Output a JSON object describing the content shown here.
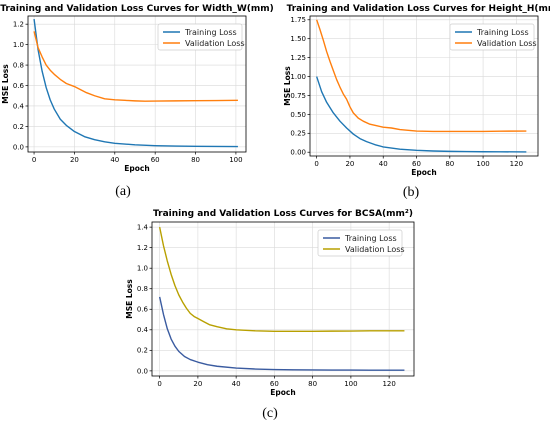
{
  "chart_data": [
    {
      "type": "line",
      "title": "Training and Validation Loss Curves for Width_W(mm)",
      "xlabel": "Epoch",
      "ylabel": "MSE Loss",
      "xlim": [
        -3,
        105
      ],
      "ylim": [
        -0.05,
        1.28
      ],
      "xticks": [
        0,
        20,
        40,
        60,
        80,
        100
      ],
      "yticks": [
        0.0,
        0.2,
        0.4,
        0.6,
        0.8,
        1.0,
        1.2
      ],
      "grid": true,
      "legend_position": "top-right",
      "caption": "(a)",
      "series": [
        {
          "name": "Training Loss",
          "color": "#1f77b4",
          "x": [
            0,
            2,
            4,
            6,
            8,
            10,
            13,
            16,
            20,
            25,
            30,
            35,
            40,
            50,
            60,
            70,
            80,
            90,
            101
          ],
          "values": [
            1.25,
            0.95,
            0.74,
            0.58,
            0.46,
            0.37,
            0.27,
            0.21,
            0.15,
            0.1,
            0.07,
            0.05,
            0.035,
            0.02,
            0.012,
            0.008,
            0.006,
            0.004,
            0.003
          ]
        },
        {
          "name": "Validation Loss",
          "color": "#ff7f0e",
          "x": [
            0,
            2,
            4,
            6,
            8,
            10,
            13,
            16,
            20,
            23,
            26,
            30,
            35,
            40,
            45,
            50,
            55,
            60,
            70,
            80,
            90,
            101
          ],
          "values": [
            1.13,
            0.97,
            0.88,
            0.8,
            0.75,
            0.71,
            0.66,
            0.62,
            0.59,
            0.56,
            0.53,
            0.5,
            0.47,
            0.46,
            0.455,
            0.45,
            0.447,
            0.448,
            0.45,
            0.452,
            0.453,
            0.455
          ]
        }
      ]
    },
    {
      "type": "line",
      "title": "Training and Validation Loss Curves for Height_H(mm)",
      "xlabel": "Epoch",
      "ylabel": "MSE Loss",
      "xlim": [
        -4,
        133
      ],
      "ylim": [
        -0.05,
        1.8
      ],
      "xticks": [
        0,
        20,
        40,
        60,
        80,
        100,
        120
      ],
      "yticks": [
        0.0,
        0.25,
        0.5,
        0.75,
        1.0,
        1.25,
        1.5,
        1.75
      ],
      "grid": true,
      "legend_position": "top-right",
      "caption": "(b)",
      "series": [
        {
          "name": "Training Loss",
          "color": "#1f77b4",
          "x": [
            0,
            3,
            6,
            10,
            14,
            18,
            22,
            26,
            30,
            35,
            40,
            50,
            60,
            70,
            80,
            90,
            100,
            110,
            126
          ],
          "values": [
            1.0,
            0.8,
            0.66,
            0.52,
            0.41,
            0.32,
            0.24,
            0.18,
            0.14,
            0.1,
            0.07,
            0.04,
            0.025,
            0.016,
            0.011,
            0.008,
            0.006,
            0.005,
            0.004
          ]
        },
        {
          "name": "Validation Loss",
          "color": "#ff7f0e",
          "x": [
            0,
            2,
            4,
            6,
            8,
            10,
            12,
            14,
            16,
            18,
            20,
            22,
            25,
            28,
            32,
            36,
            40,
            45,
            50,
            55,
            60,
            70,
            80,
            90,
            100,
            110,
            126
          ],
          "values": [
            1.75,
            1.62,
            1.48,
            1.33,
            1.2,
            1.08,
            0.96,
            0.86,
            0.77,
            0.7,
            0.6,
            0.52,
            0.45,
            0.41,
            0.37,
            0.35,
            0.33,
            0.32,
            0.3,
            0.29,
            0.28,
            0.275,
            0.275,
            0.275,
            0.275,
            0.278,
            0.28
          ]
        }
      ]
    },
    {
      "type": "line",
      "title": "Training and Validation Loss Curves for BCSA(mm²)",
      "xlabel": "Epoch",
      "ylabel": "MSE Loss",
      "xlim": [
        -4,
        133
      ],
      "ylim": [
        -0.05,
        1.45
      ],
      "xticks": [
        0,
        20,
        40,
        60,
        80,
        100,
        120
      ],
      "yticks": [
        0.0,
        0.2,
        0.4,
        0.6,
        0.8,
        1.0,
        1.2,
        1.4
      ],
      "grid": true,
      "legend_position": "top-right",
      "caption": "(c)",
      "series": [
        {
          "name": "Training Loss",
          "color": "#3a5ba0",
          "x": [
            0,
            2,
            4,
            6,
            8,
            10,
            13,
            16,
            20,
            25,
            30,
            40,
            50,
            60,
            70,
            80,
            90,
            100,
            110,
            128
          ],
          "values": [
            0.72,
            0.55,
            0.41,
            0.31,
            0.24,
            0.19,
            0.14,
            0.11,
            0.085,
            0.06,
            0.045,
            0.027,
            0.018,
            0.013,
            0.01,
            0.009,
            0.008,
            0.008,
            0.007,
            0.007
          ]
        },
        {
          "name": "Validation Loss",
          "color": "#b8a000",
          "x": [
            0,
            2,
            4,
            6,
            8,
            10,
            12,
            14,
            16,
            18,
            20,
            23,
            26,
            30,
            35,
            40,
            50,
            60,
            70,
            80,
            90,
            100,
            110,
            128
          ],
          "values": [
            1.4,
            1.22,
            1.07,
            0.94,
            0.83,
            0.74,
            0.67,
            0.61,
            0.56,
            0.53,
            0.51,
            0.48,
            0.45,
            0.43,
            0.41,
            0.4,
            0.39,
            0.385,
            0.385,
            0.385,
            0.387,
            0.388,
            0.39,
            0.39
          ]
        }
      ]
    }
  ]
}
